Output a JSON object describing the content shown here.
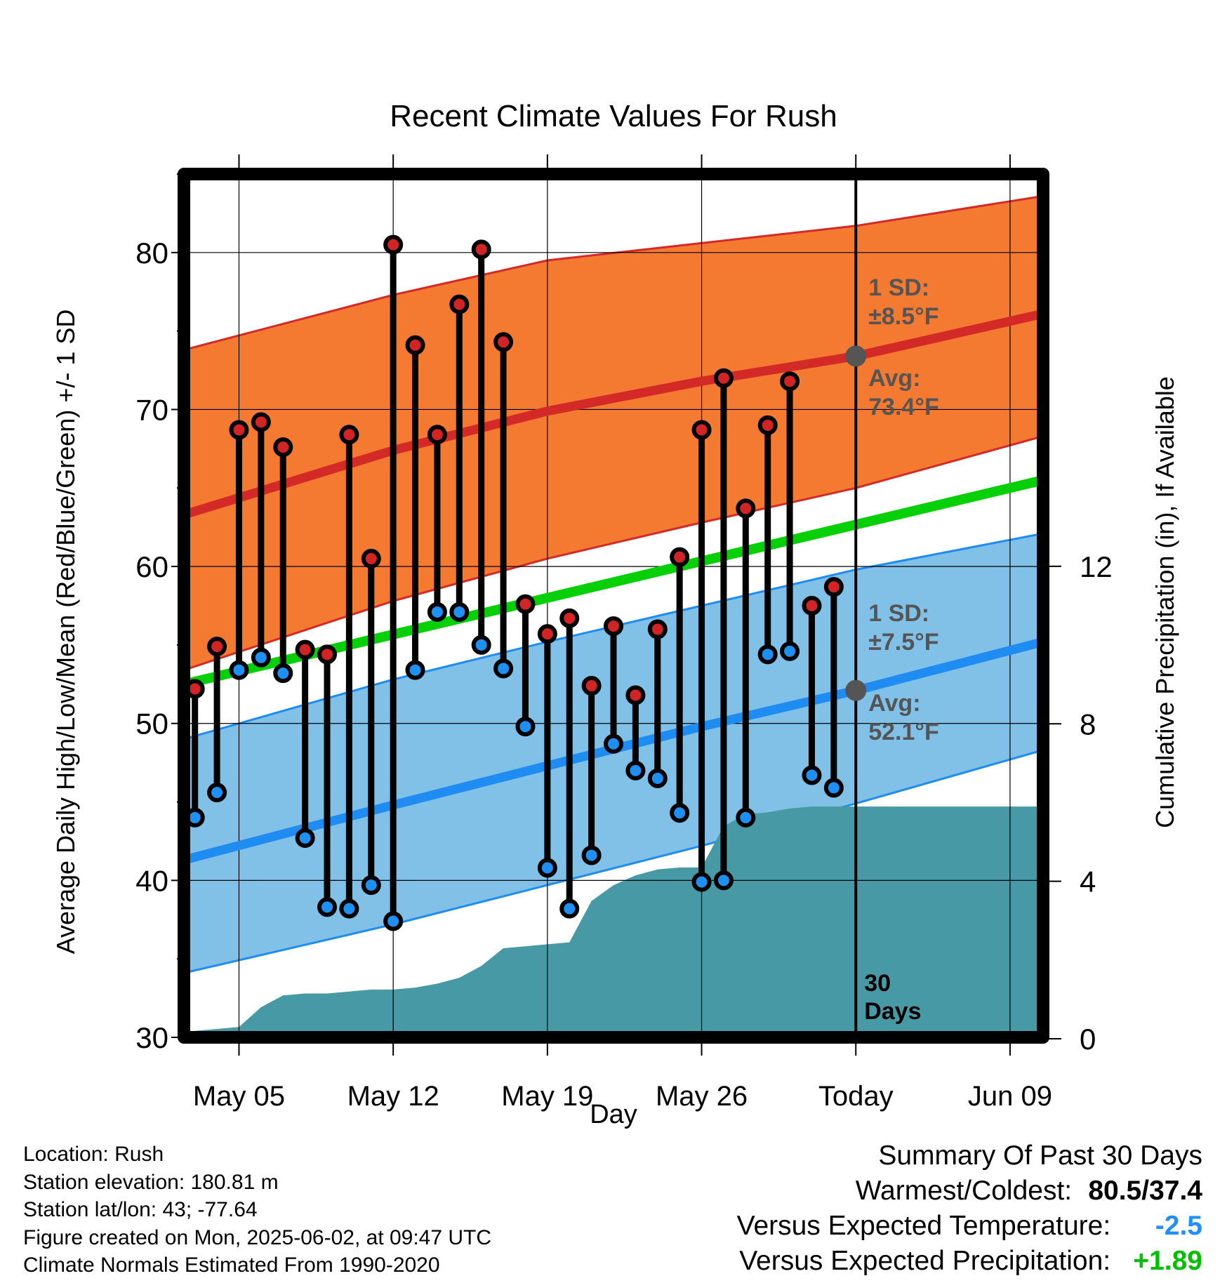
{
  "chart_data": {
    "type": "line",
    "title": "Recent Climate Values For Rush",
    "xlabel": "Day",
    "ylabel_left": "Average Daily High/Low/Mean (Red/Blue/Green) +/- 1 SD",
    "ylabel_right": "Cumulative Precipitation (in), If Available",
    "ylim_left": [
      30,
      85
    ],
    "ylim_right": [
      0,
      22
    ],
    "xlim_days": [
      -30.5,
      8.5
    ],
    "x_tick_labels": [
      "May 05",
      "May 12",
      "May 19",
      "May 26",
      "Today",
      "Jun 09"
    ],
    "x_tick_days": [
      -28,
      -21,
      -14,
      -7,
      0,
      7
    ],
    "y_ticks_left": [
      30,
      40,
      50,
      60,
      70,
      80
    ],
    "y_ticks_right": [
      0,
      4,
      8,
      12
    ],
    "grid": true,
    "today_marker_label": "30 Days",
    "normal_high": {
      "x": [
        -30.5,
        -21,
        -14,
        -7,
        0,
        8.5
      ],
      "mean": [
        63.3,
        67.4,
        69.9,
        71.8,
        73.4,
        76.1
      ],
      "upper": [
        73.8,
        77.3,
        79.5,
        80.6,
        81.7,
        83.6
      ],
      "lower": [
        53.4,
        57.8,
        60.5,
        62.8,
        65.0,
        68.3
      ],
      "label_sd": "1 SD:",
      "label_sd_value": "±8.5°F",
      "label_avg": "Avg:",
      "label_avg_value": "73.4°F",
      "avg_today": 73.4
    },
    "normal_low": {
      "x": [
        -30.5,
        -21,
        -14,
        -7,
        0,
        8.5
      ],
      "mean": [
        41.3,
        44.8,
        47.3,
        49.8,
        52.1,
        55.2
      ],
      "upper": [
        49.0,
        52.8,
        55.2,
        57.5,
        59.8,
        62.1
      ],
      "lower": [
        34.1,
        37.2,
        39.7,
        42.2,
        44.9,
        48.3
      ],
      "label_sd": "1 SD:",
      "label_sd_value": "±7.5°F",
      "label_avg": "Avg:",
      "label_avg_value": "52.1°F",
      "avg_today": 52.1
    },
    "normal_mean": {
      "x": [
        -30.5,
        8.5
      ],
      "values": [
        52.5,
        65.5
      ]
    },
    "daily": {
      "day": [
        -30,
        -29,
        -28,
        -27,
        -26,
        -25,
        -24,
        -23,
        -22,
        -21,
        -20,
        -19,
        -18,
        -17,
        -16,
        -15,
        -14,
        -13,
        -12,
        -11,
        -10,
        -9,
        -8,
        -7,
        -6,
        -5,
        -4,
        -3,
        -2,
        -1
      ],
      "high": [
        52.2,
        54.9,
        68.7,
        69.2,
        67.6,
        54.7,
        54.4,
        68.4,
        60.5,
        80.5,
        74.1,
        68.4,
        76.7,
        80.2,
        74.3,
        57.6,
        55.7,
        56.7,
        52.4,
        56.2,
        51.8,
        56.0,
        60.6,
        68.7,
        72.0,
        63.7,
        69.0,
        71.8,
        57.5,
        58.7
      ],
      "low": [
        44.0,
        45.6,
        53.4,
        54.2,
        53.2,
        42.7,
        38.3,
        38.2,
        39.7,
        37.4,
        53.4,
        57.1,
        57.1,
        55.0,
        53.5,
        49.8,
        40.8,
        38.2,
        41.6,
        48.7,
        47.0,
        46.5,
        44.3,
        39.9,
        40.0,
        44.0,
        54.4,
        54.6,
        46.7,
        45.9
      ]
    },
    "precip_cumulative": {
      "day": [
        -30.5,
        -30,
        -29,
        -28,
        -27,
        -26,
        -25,
        -24,
        -23,
        -22,
        -21,
        -20,
        -19,
        -18,
        -17,
        -16,
        -15,
        -14,
        -13,
        -12,
        -11,
        -10,
        -9,
        -8,
        -7,
        -6,
        -5,
        -4,
        -3,
        -2,
        -1,
        0,
        8.5
      ],
      "inches": [
        0.0,
        0.2,
        0.25,
        0.3,
        0.8,
        1.1,
        1.15,
        1.15,
        1.2,
        1.25,
        1.25,
        1.3,
        1.4,
        1.55,
        1.85,
        2.3,
        2.35,
        2.4,
        2.45,
        3.5,
        3.9,
        4.15,
        4.3,
        4.35,
        4.35,
        5.4,
        5.7,
        5.75,
        5.85,
        5.9,
        5.9,
        5.9,
        5.9
      ]
    },
    "colors": {
      "high_band": "#f47a31",
      "high_line": "#d32a27",
      "low_band": "#81c0e7",
      "low_line": "#1e8cf0",
      "mean_line": "#07cf08",
      "precip": "#4799a6",
      "high_marker": "#d22425",
      "low_marker": "#1e90f2",
      "today_dot": "#555555",
      "annotation_text": "#555555",
      "temp_departure": "#1e90ff",
      "precip_departure": "#00c000"
    }
  },
  "info": {
    "location": "Location: Rush",
    "elevation": "Station elevation: 180.81 m",
    "latlon": "Station lat/lon: 43; -77.64",
    "created": "Figure created on Mon, 2025-06-02, at 09:47 UTC",
    "normals": "Climate Normals Estimated From 1990-2020"
  },
  "summary": {
    "heading": "Summary Of Past 30 Days",
    "warm_cold_label": "Warmest/Coldest:",
    "warm_cold_value": "80.5/37.4",
    "temp_label": "Versus Expected Temperature:",
    "temp_value": "-2.5",
    "precip_label": "Versus Expected Precipitation:",
    "precip_value": "+1.89"
  }
}
